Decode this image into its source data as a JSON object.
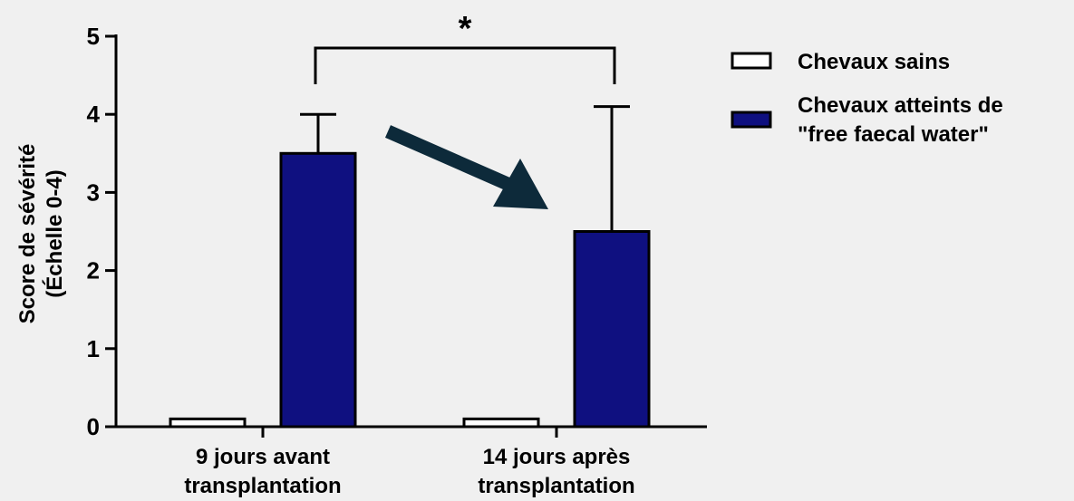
{
  "chart_data": {
    "type": "bar",
    "title": "",
    "ylabel_line1": "Score de sévérité",
    "ylabel_line2": "(Échelle 0-4)",
    "ylim": [
      0,
      5
    ],
    "yticks": [
      "0",
      "1",
      "2",
      "3",
      "4",
      "5"
    ],
    "categories": [
      {
        "line1": "9 jours avant",
        "line2": "transplantation"
      },
      {
        "line1": "14 jours après",
        "line2": "transplantation"
      }
    ],
    "series": [
      {
        "name": "Chevaux sains",
        "values": [
          0.1,
          0.1
        ],
        "error": [
          0,
          0
        ],
        "color": "#ffffff"
      },
      {
        "name_line1": "Chevaux atteints de",
        "name_line2": "\"free faecal water\"",
        "values": [
          3.5,
          2.5
        ],
        "error": [
          0.5,
          1.6
        ],
        "color": "#0f1080"
      }
    ],
    "significance": {
      "label": "*",
      "between": [
        0,
        1
      ]
    },
    "annotation_arrow": {
      "color": "#0d2a3a"
    },
    "legend_position": "right"
  }
}
